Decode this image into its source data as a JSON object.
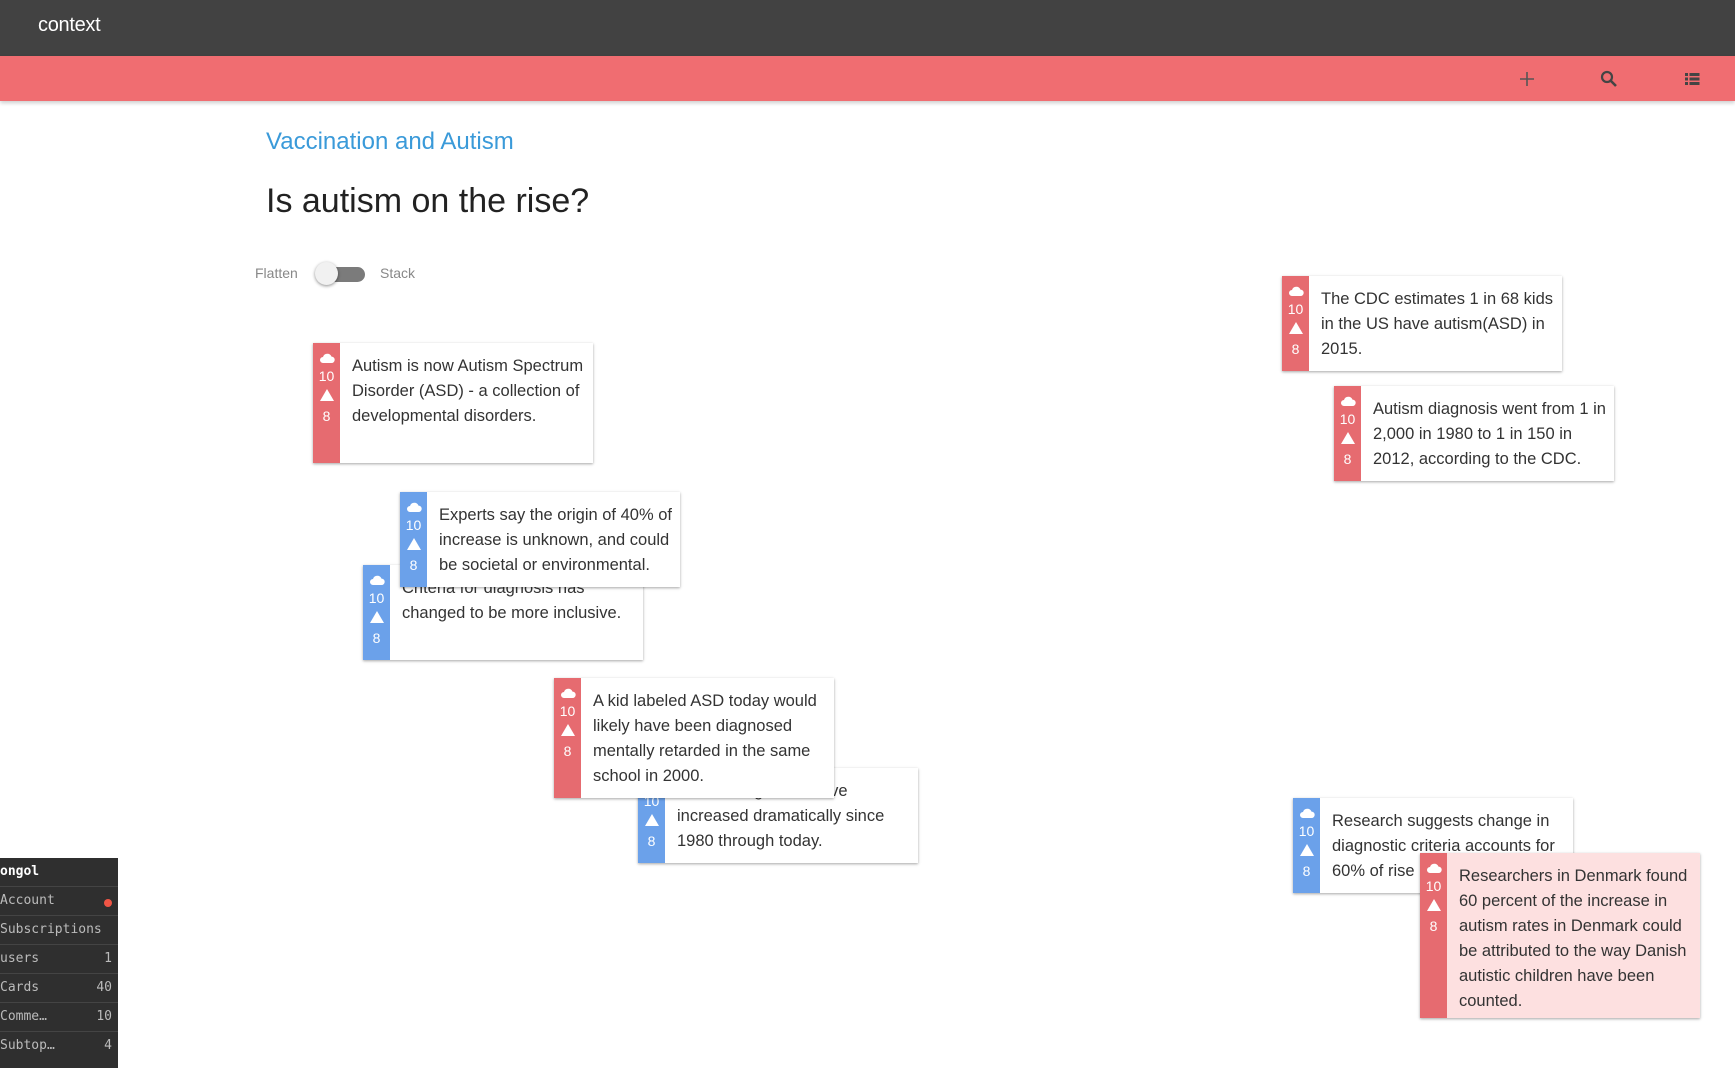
{
  "app": {
    "brand": "context"
  },
  "toolbar": {
    "icons": [
      "plus-icon",
      "search-icon",
      "list-icon"
    ]
  },
  "breadcrumb": "Vaccination and Autism",
  "title": "Is autism on the rise?",
  "toggle": {
    "left_label": "Flatten",
    "right_label": "Stack",
    "state": "Flatten"
  },
  "colors": {
    "topbar": "#424242",
    "accent_bar": "#f06d71",
    "red_card": "#e66b70",
    "blue_card": "#6ba1ea",
    "link": "#3a9ad9",
    "highlight_card": "#fde0e0"
  },
  "cards": [
    {
      "text": "Criteria for diagnosis has changed to be more inclusive.",
      "count": "10",
      "num": "8",
      "side": "blue"
    },
    {
      "text": "Autism is now Autism Spectrum Disorder (ASD) - a collection of developmental disorders.",
      "count": "10",
      "num": "8",
      "side": "red"
    },
    {
      "text": "Experts say the origin of 40% of increase is unknown, and could be societal or environmental.",
      "count": "10",
      "num": "8",
      "side": "blue"
    },
    {
      "text": "Autism diagnoses have increased dramatically since 1980 through today.",
      "count": "10",
      "num": "8",
      "side": "blue"
    },
    {
      "text": "A kid labeled ASD today would likely have been diagnosed mentally retarded in the same school in 2000.",
      "count": "10",
      "num": "8",
      "side": "red"
    },
    {
      "text": "The CDC estimates 1 in 68 kids in the US have autism(ASD) in 2015.",
      "count": "10",
      "num": "8",
      "side": "red"
    },
    {
      "text": "Autism diagnosis went from 1 in 2,000 in 1980 to 1 in 150 in 2012, according to the CDC.",
      "count": "10",
      "num": "8",
      "side": "red"
    },
    {
      "text": "Research suggests change in diagnostic criteria accounts for 60% of rise",
      "count": "10",
      "num": "8",
      "side": "blue"
    },
    {
      "text": "Researchers in Denmark found 60 percent of the increase in autism rates in Denmark could be attributed to the way Danish autistic children have been counted.",
      "count": "10",
      "num": "8",
      "side": "red"
    }
  ],
  "debug_panel": {
    "title": "ongol",
    "rows": [
      {
        "label": "Account",
        "value": "",
        "status": "error"
      },
      {
        "label": "Subscriptions",
        "value": ""
      },
      {
        "label": "users",
        "value": "1"
      },
      {
        "label": "Cards",
        "value": "40"
      },
      {
        "label": "Comme…",
        "value": "10"
      },
      {
        "label": "Subtop…",
        "value": "4"
      }
    ]
  }
}
